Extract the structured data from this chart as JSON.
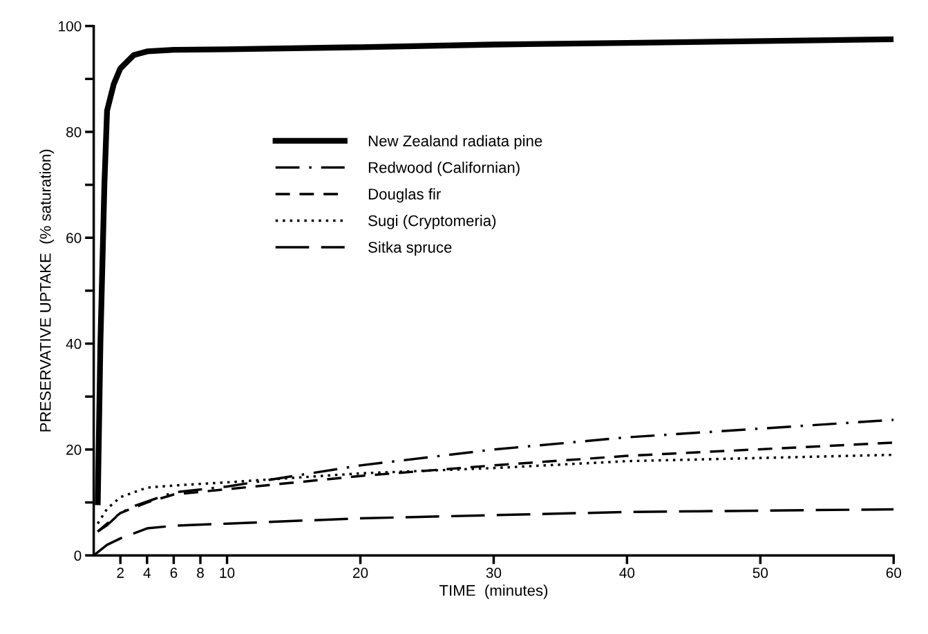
{
  "chart_data": {
    "type": "line",
    "xlabel": "TIME  (minutes)",
    "ylabel": "PRESERVATIVE UPTAKE  (% saturation)",
    "xlim": [
      0,
      60
    ],
    "ylim": [
      0,
      100
    ],
    "xticks": [
      2,
      4,
      6,
      8,
      10,
      20,
      30,
      40,
      50,
      60
    ],
    "yticks": [
      0,
      {
        "value": 10,
        "label": null
      },
      20,
      {
        "value": 30,
        "label": null
      },
      40,
      {
        "value": 50,
        "label": null
      },
      60,
      {
        "value": 70,
        "label": null
      },
      80,
      {
        "value": 90,
        "label": null
      },
      100
    ],
    "grid": false,
    "legend": "top center",
    "series": [
      {
        "name": "New Zealand radiata pine",
        "color": "#000000",
        "line_style": "solid",
        "x": [
          0.3,
          0.5,
          0.8,
          1,
          1.5,
          2,
          3,
          4,
          6,
          10,
          20,
          30,
          40,
          60
        ],
        "values": [
          9.5,
          40,
          70,
          84,
          89,
          92,
          94.5,
          95.2,
          95.5,
          95.6,
          96,
          96.5,
          96.8,
          97.5
        ]
      },
      {
        "name": "Redwood (Californian)",
        "color": "#000000",
        "line_style": "dashdot",
        "x": [
          0.3,
          1,
          2,
          3,
          6,
          10,
          20,
          30,
          40,
          60
        ],
        "values": [
          4.5,
          5.7,
          8,
          9.3,
          11.9,
          13,
          17,
          20,
          22.3,
          25.6
        ]
      },
      {
        "name": "Douglas fir",
        "color": "#000000",
        "line_style": "dashed",
        "x": [
          0.3,
          1,
          2,
          4,
          6,
          10,
          20,
          30,
          40,
          60
        ],
        "values": [
          4.5,
          6,
          8,
          10,
          11.5,
          12.5,
          15,
          17,
          18.8,
          21.3
        ]
      },
      {
        "name": "Sugi (Cryptomeria)",
        "color": "#000000",
        "line_style": "dotted",
        "x": [
          0.3,
          1,
          2,
          4,
          6,
          10,
          20,
          30,
          40,
          60
        ],
        "values": [
          6,
          8.8,
          11,
          12.8,
          13.2,
          13.8,
          15.5,
          16.5,
          17.8,
          19
        ]
      },
      {
        "name": "Sitka spruce",
        "color": "#000000",
        "line_style": "longdash",
        "x": [
          0,
          1,
          2,
          4,
          6,
          10,
          20,
          40,
          60
        ],
        "values": [
          0,
          2,
          3.2,
          5.1,
          5.6,
          6,
          7,
          8.2,
          8.7
        ]
      }
    ]
  }
}
